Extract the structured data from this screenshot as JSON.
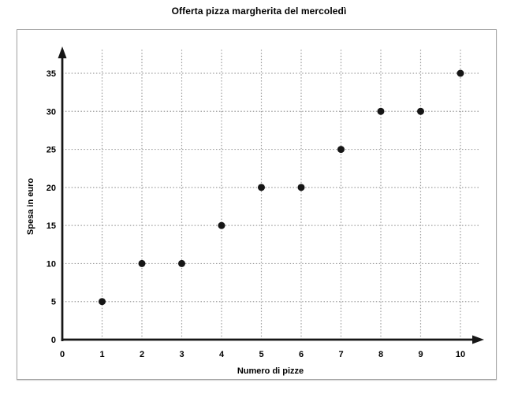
{
  "chart_data": {
    "type": "scatter",
    "title": "Offerta pizza margherita del mercoledì",
    "xlabel": "Numero di pizze",
    "ylabel": "Spesa in euro",
    "points": [
      [
        1,
        5
      ],
      [
        2,
        10
      ],
      [
        3,
        10
      ],
      [
        4,
        15
      ],
      [
        5,
        20
      ],
      [
        6,
        20
      ],
      [
        7,
        25
      ],
      [
        8,
        30
      ],
      [
        9,
        30
      ],
      [
        10,
        35
      ]
    ],
    "xticks": [
      0,
      1,
      2,
      3,
      4,
      5,
      6,
      7,
      8,
      9,
      10
    ],
    "yticks": [
      0,
      5,
      10,
      15,
      20,
      25,
      30,
      35
    ],
    "xlim": [
      0,
      10.6
    ],
    "ylim": [
      0,
      38
    ],
    "grid": "dotted",
    "legend_position": "none",
    "colors": {
      "point": "#161616",
      "axis": "#161616",
      "gridline": "#9e9e9e",
      "frame_border": "#a6a6a6",
      "text": "#000000",
      "background": "#ffffff"
    }
  }
}
